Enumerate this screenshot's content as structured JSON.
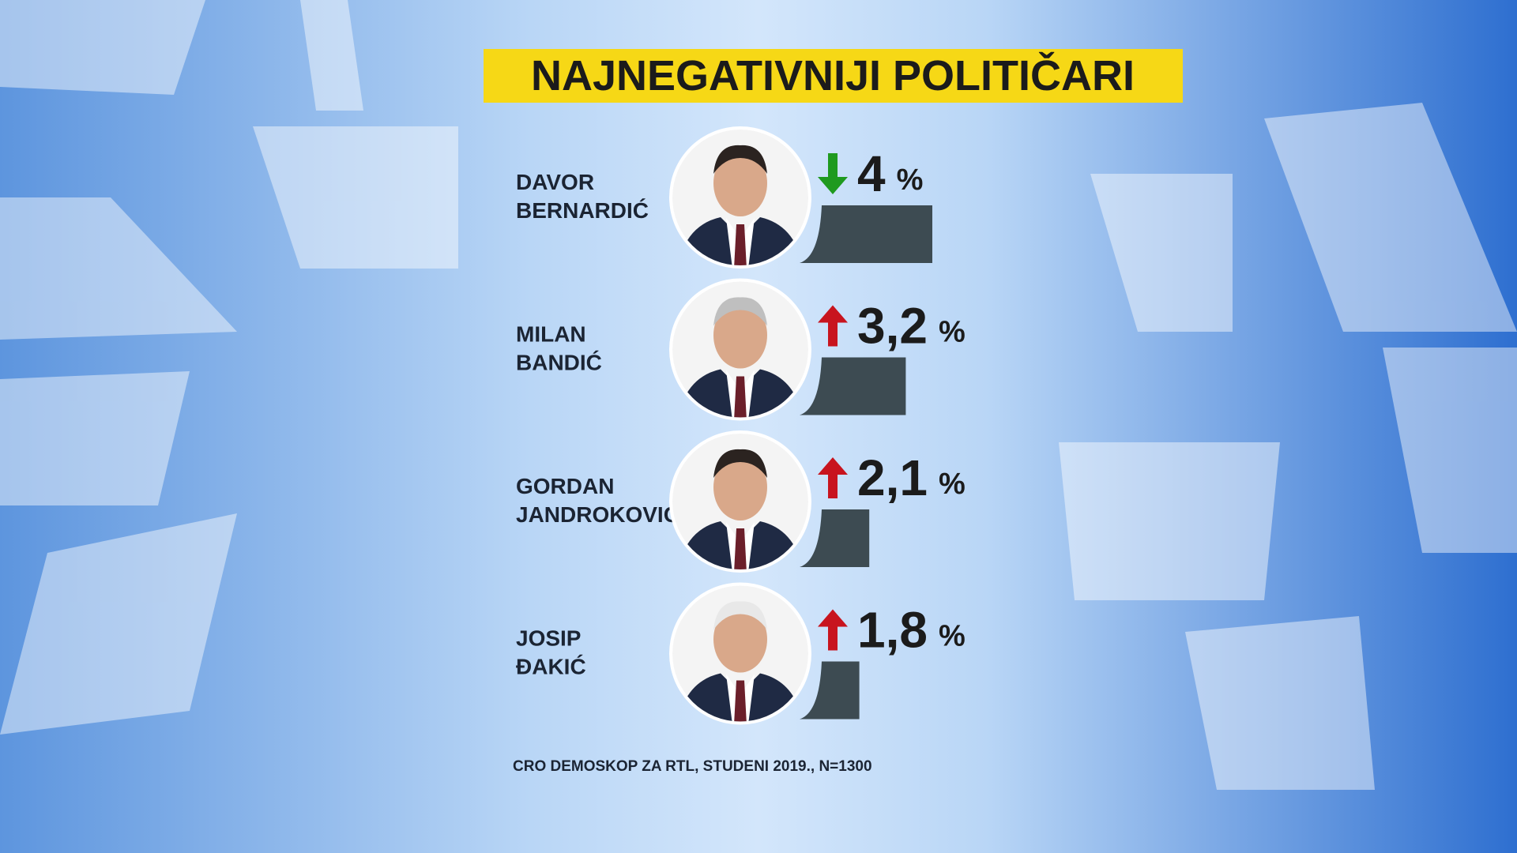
{
  "chart_data": {
    "type": "bar",
    "title": "NAJNEGATIVNIJI POLITIČARI",
    "categories": [
      "DAVOR BERNARDIĆ",
      "MILAN BANDIĆ",
      "GORDAN JANDROKOVIĆ",
      "JOSIP ĐAKIĆ"
    ],
    "values": [
      4,
      3.2,
      2.1,
      1.8
    ],
    "value_labels": [
      "4",
      "3,2",
      "2,1",
      "1,8"
    ],
    "unit": "%",
    "trends": [
      "down",
      "up",
      "up",
      "up"
    ],
    "trend_colors": {
      "down": "#1f9a1f",
      "up": "#c8141e"
    },
    "color": "#3d4b52",
    "source": "CRO DEMOSKOP ZA RTL, STUDENI 2019., N=1300"
  }
}
